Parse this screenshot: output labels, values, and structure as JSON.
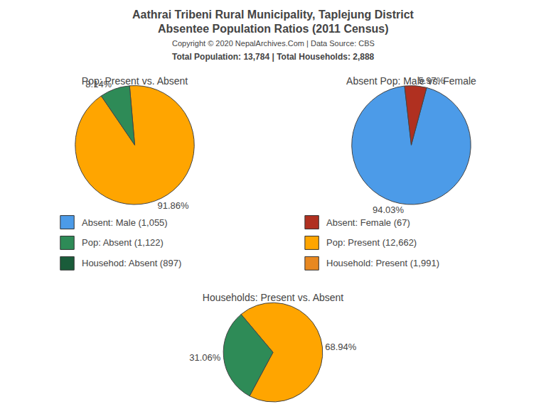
{
  "title": [
    "Aathrai Tribeni Rural Municipality, Taplejung District",
    "Absentee Population Ratios (2011 Census)"
  ],
  "subtitle": [
    "Copyright © 2020 NepalArchives.Com | Data Source: CBS",
    "Total Population: 13,784 | Total Households: 2,888"
  ],
  "legend_items": [
    {
      "label": "Absent: Male (1,055)",
      "color": "#4C9BE8"
    },
    {
      "label": "Absent: Female (67)",
      "color": "#B03020"
    },
    {
      "label": "Pop: Absent (1,122)",
      "color": "#2E8B57"
    },
    {
      "label": "Pop: Present (12,662)",
      "color": "#FFA500"
    },
    {
      "label": "Househod: Absent (897)",
      "color": "#1A5C3A"
    },
    {
      "label": "Household: Present (1,991)",
      "color": "#E88820"
    }
  ],
  "chart_data": [
    {
      "type": "pie",
      "title": "Pop: Present vs. Absent",
      "values": [
        91.86,
        8.14
      ],
      "value_labels": [
        "91.86%",
        "8.14%"
      ],
      "colors": [
        "#FFA500",
        "#2E8B57"
      ],
      "data_labels": true
    },
    {
      "type": "pie",
      "title": "Absent Pop: Male vs. Female",
      "values": [
        94.03,
        5.97
      ],
      "value_labels": [
        "94.03%",
        "5.97%"
      ],
      "colors": [
        "#4C9BE8",
        "#B03020"
      ],
      "data_labels": true
    },
    {
      "type": "pie",
      "title": "Households: Present vs. Absent",
      "values": [
        68.94,
        31.06
      ],
      "value_labels": [
        "68.94%",
        "31.06%"
      ],
      "colors": [
        "#FFA500",
        "#2E8B57"
      ],
      "data_labels": true
    }
  ]
}
